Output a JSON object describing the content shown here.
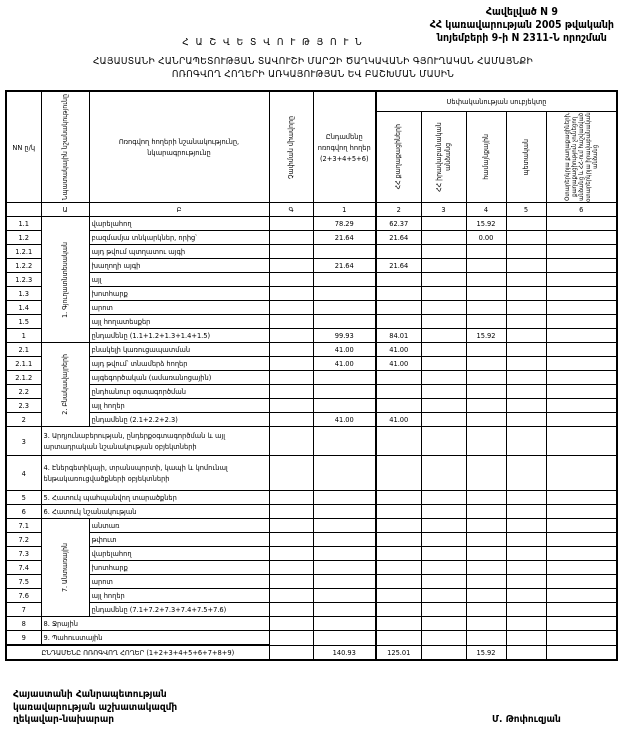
{
  "annex": {
    "line1": "Հավելված N 9",
    "line2": "ՀՀ կառավարության 2005 թվականի",
    "line3": "նոյեմբերի 9-ի N 2311-Ն որոշման"
  },
  "title": {
    "main": "Հ Ա Շ Վ Ե Տ Վ Ո Ւ Թ Յ Ո Ւ Ն",
    "line1": "ՀԱՅԱՍՏԱՆԻ ՀԱՆՐԱՊԵՏՈՒԹՅԱՆ ՏԱՎՈՒՇԻ ՄԱՐԶԻ ԾԱՂԿԱՎԱՆԻ ԳՅՈՒՂԱԿԱՆ ՀԱՄԱՅՆՔԻ",
    "line2": "ՈՌՈԳՎՈՂ ՀՈՂԵՐԻ ԱՌԿԱՅՈՒԹՅԱՆ ԵՎ ԲԱՇԽՄԱՆ ՄԱՍԻՆ"
  },
  "table": {
    "headers": {
      "nn": "NN ը/կ",
      "purpose": "Նպատակային նշանակությունը",
      "name": "Ոռոգվող հողերի նշանակությունը, նկարագրությունը",
      "unit": "Չափման միավորը",
      "total": "Ընդամենը ոռոգվող հողեր (2+3+4+5+6)",
      "ownership": "Սեփականության սուբյեկտը",
      "c2": "ՀՀ քաղաքացիների",
      "c3": "ՀՀ իրավաբանական անձանց",
      "c4": "համայնքային",
      "c5": "պետական",
      "c6": "Օտարերկրյա քաղաքացիների, քաղաքացիություն չունեցող անձանց և ՀՀ-ում հաշվառված օտարերկրյա իրավաբանական անձանց"
    },
    "letters": [
      "",
      "Ա",
      "Բ",
      "Գ",
      "1",
      "2",
      "3",
      "4",
      "5",
      "6"
    ],
    "groups": {
      "g1": "1. Գյուղատնտեսական",
      "g2": "2. Բնակավայրերի",
      "g7": "7. Անտառային"
    },
    "rows": [
      {
        "nn": "1.1",
        "group": "g1",
        "label": "վարելահող",
        "total": "78.29",
        "c2": "62.37",
        "c3": "",
        "c4": "15.92",
        "c5": "",
        "c6": ""
      },
      {
        "nn": "1.2",
        "group": "g1",
        "label": "բազմամյա տնկարկներ, որից՝",
        "total": "21.64",
        "c2": "21.64",
        "c3": "",
        "c4": "0.00",
        "c5": "",
        "c6": ""
      },
      {
        "nn": "1.2.1",
        "group": "g1",
        "label": "այդ թվում                 պտղատու այգի",
        "total": "",
        "c2": "",
        "c3": "",
        "c4": "",
        "c5": "",
        "c6": ""
      },
      {
        "nn": "1.2.2",
        "group": "g1",
        "label": "                                   խաղողի այգի",
        "total": "21.64",
        "c2": "21.64",
        "c3": "",
        "c4": "",
        "c5": "",
        "c6": ""
      },
      {
        "nn": "1.2.3",
        "group": "g1",
        "label": "այլ",
        "total": "",
        "c2": "",
        "c3": "",
        "c4": "",
        "c5": "",
        "c6": ""
      },
      {
        "nn": "1.3",
        "group": "g1",
        "label": "խոտհարք",
        "total": "",
        "c2": "",
        "c3": "",
        "c4": "",
        "c5": "",
        "c6": ""
      },
      {
        "nn": "1.4",
        "group": "g1",
        "label": "արոտ",
        "total": "",
        "c2": "",
        "c3": "",
        "c4": "",
        "c5": "",
        "c6": ""
      },
      {
        "nn": "1.5",
        "group": "g1",
        "label": "այլ հողատեսքեր",
        "total": "",
        "c2": "",
        "c3": "",
        "c4": "",
        "c5": "",
        "c6": ""
      },
      {
        "nn": "1",
        "group": "g1",
        "label": "ընդամենը (1.1+1.2+1.3+1.4+1.5)",
        "total": "99.93",
        "c2": "84.01",
        "c3": "",
        "c4": "15.92",
        "c5": "",
        "c6": ""
      },
      {
        "nn": "2.1",
        "group": "g2",
        "label": "բնակելի կառուցապատման",
        "total": "41.00",
        "c2": "41.00",
        "c3": "",
        "c4": "",
        "c5": "",
        "c6": ""
      },
      {
        "nn": "2.1.1",
        "group": "g2",
        "label": "այդ թվում՝ տնամերձ հողեր",
        "total": "41.00",
        "c2": "41.00",
        "c3": "",
        "c4": "",
        "c5": "",
        "c6": ""
      },
      {
        "nn": "2.1.2",
        "group": "g2",
        "label": "այգեգործական (ամառանոցային)",
        "total": "",
        "c2": "",
        "c3": "",
        "c4": "",
        "c5": "",
        "c6": ""
      },
      {
        "nn": "2.2",
        "group": "g2",
        "label": "ընդհանուր օգտագործման",
        "total": "",
        "c2": "",
        "c3": "",
        "c4": "",
        "c5": "",
        "c6": ""
      },
      {
        "nn": "2.3",
        "group": "g2",
        "label": "այլ հողեր",
        "total": "",
        "c2": "",
        "c3": "",
        "c4": "",
        "c5": "",
        "c6": ""
      },
      {
        "nn": "2",
        "group": "g2",
        "label": "ընդամենը (2.1+2.2+2.3)",
        "total": "41.00",
        "c2": "41.00",
        "c3": "",
        "c4": "",
        "c5": "",
        "c6": ""
      },
      {
        "nn": "3",
        "group": "",
        "size": "tall",
        "label": "3. Արդյունաբերության, ընդերքօգտագործման և այլ արտադրական նշանակության օբյեկտների",
        "total": "",
        "c2": "",
        "c3": "",
        "c4": "",
        "c5": "",
        "c6": ""
      },
      {
        "nn": "4",
        "group": "",
        "size": "tall4",
        "label": "4. Էներգետիկայի, տրանսպորտի, կապի և կոմունալ ենթակառուցվածքների օբյեկտների",
        "total": "",
        "c2": "",
        "c3": "",
        "c4": "",
        "c5": "",
        "c6": ""
      },
      {
        "nn": "5",
        "group": "",
        "label": "5. Հատուկ պահպանվող տարածքներ",
        "total": "",
        "c2": "",
        "c3": "",
        "c4": "",
        "c5": "",
        "c6": ""
      },
      {
        "nn": "6",
        "group": "",
        "label": "6. Հատուկ նշանակության",
        "total": "",
        "c2": "",
        "c3": "",
        "c4": "",
        "c5": "",
        "c6": ""
      },
      {
        "nn": "7.1",
        "group": "g7",
        "label": "անտառ",
        "total": "",
        "c2": "",
        "c3": "",
        "c4": "",
        "c5": "",
        "c6": ""
      },
      {
        "nn": "7.2",
        "group": "g7",
        "label": "թփուտ",
        "total": "",
        "c2": "",
        "c3": "",
        "c4": "",
        "c5": "",
        "c6": ""
      },
      {
        "nn": "7.3",
        "group": "g7",
        "label": "վարելահող",
        "total": "",
        "c2": "",
        "c3": "",
        "c4": "",
        "c5": "",
        "c6": ""
      },
      {
        "nn": "7.4",
        "group": "g7",
        "label": "խոտհարք",
        "total": "",
        "c2": "",
        "c3": "",
        "c4": "",
        "c5": "",
        "c6": ""
      },
      {
        "nn": "7.5",
        "group": "g7",
        "label": "արոտ",
        "total": "",
        "c2": "",
        "c3": "",
        "c4": "",
        "c5": "",
        "c6": ""
      },
      {
        "nn": "7.6",
        "group": "g7",
        "label": "այլ հողեր",
        "total": "",
        "c2": "",
        "c3": "",
        "c4": "",
        "c5": "",
        "c6": ""
      },
      {
        "nn": "7",
        "group": "g7",
        "label": "ընդամենը (7.1+7.2+7.3+7.4+7.5+7.6)",
        "total": "",
        "c2": "",
        "c3": "",
        "c4": "",
        "c5": "",
        "c6": ""
      },
      {
        "nn": "8",
        "group": "",
        "label": "8. Ջրային",
        "total": "",
        "c2": "",
        "c3": "",
        "c4": "",
        "c5": "",
        "c6": ""
      },
      {
        "nn": "9",
        "group": "",
        "label": "9. Պահուստային",
        "total": "",
        "c2": "",
        "c3": "",
        "c4": "",
        "c5": "",
        "c6": ""
      }
    ],
    "grand_total": {
      "label": "ԸՆԴԱՄԵՆԸ ՈՌՈԳՎՈՂ ՀՈՂԵՐ (1+2+3+4+5+6+7+8+9)",
      "total": "140.93",
      "c2": "125.01",
      "c3": "",
      "c4": "15.92",
      "c5": "",
      "c6": ""
    }
  },
  "footer": {
    "line1": "Հայաստանի Հանրապետության",
    "line2": "կառավարության աշխատակազմի",
    "line3": "ղեկավար-նախարար",
    "signatory": "Մ. Թոփուզյան"
  }
}
